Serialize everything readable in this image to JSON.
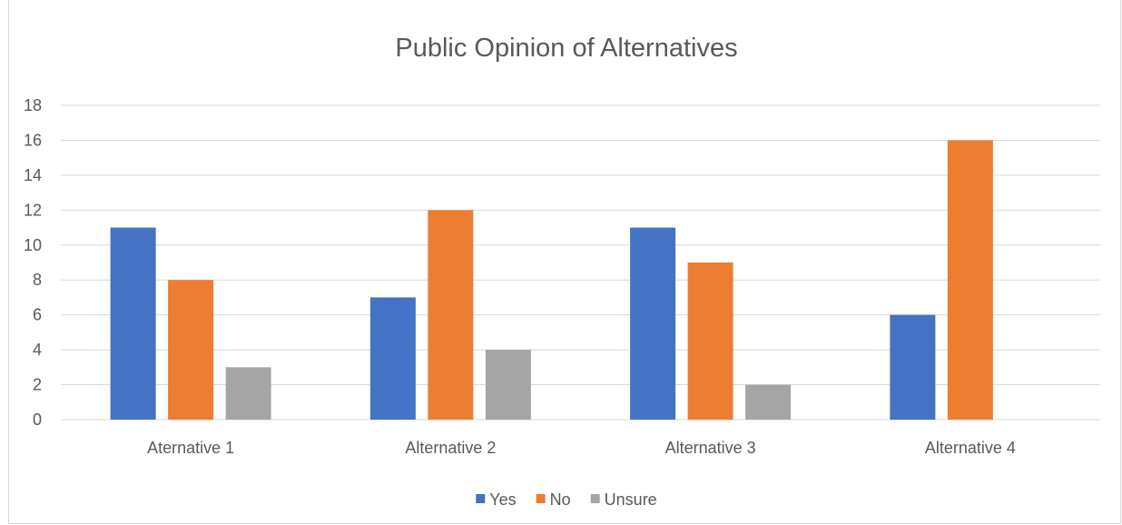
{
  "chart_data": {
    "type": "bar",
    "title": "Public Opinion of Alternatives",
    "xlabel": "",
    "ylabel": "",
    "categories": [
      "Aternative 1",
      "Alternative 2",
      "Alternative 3",
      "Alternative 4"
    ],
    "series": [
      {
        "name": "Yes",
        "color": "#4472c4",
        "values": [
          11,
          7,
          11,
          6
        ]
      },
      {
        "name": "No",
        "color": "#ed7d31",
        "values": [
          8,
          12,
          9,
          16
        ]
      },
      {
        "name": "Unsure",
        "color": "#a5a5a5",
        "values": [
          3,
          4,
          2,
          0
        ]
      }
    ],
    "ylim": [
      0,
      18
    ],
    "yticks": [
      0,
      2,
      4,
      6,
      8,
      10,
      12,
      14,
      16,
      18
    ],
    "grid": true,
    "legend_position": "bottom"
  }
}
